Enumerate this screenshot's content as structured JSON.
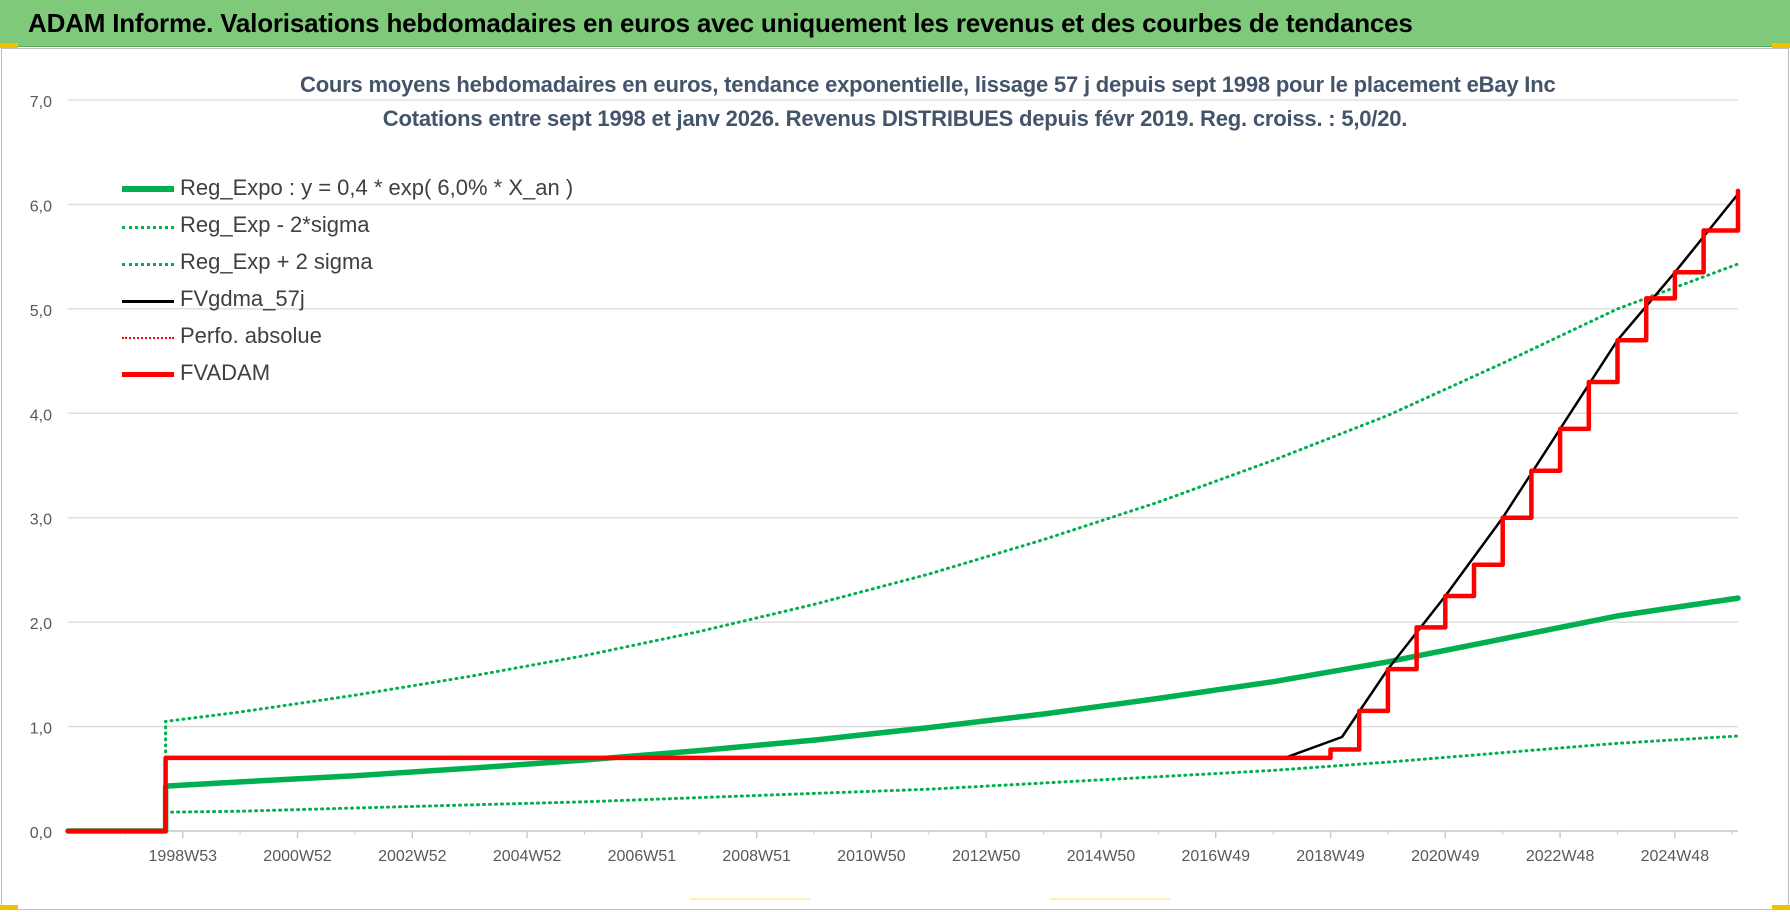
{
  "banner": {
    "title": "ADAM Informe. Valorisations hebdomadaires en euros avec uniquement les revenus et des courbes de tendances"
  },
  "colors": {
    "banner_bg": "#7ec97a",
    "green": "#00b050",
    "red": "#ff0000",
    "black": "#000000",
    "title_text": "#44546a",
    "grid": "#d9d9d9"
  },
  "chart_data": {
    "type": "line",
    "title": "Cours moyens hebdomadaires en euros, tendance exponentielle, lissage 57 j depuis sept 1998 pour le placement eBay Inc",
    "subtitle": "Cotations entre sept 1998 et janv 2026. Revenus DISTRIBUES depuis févr 2019. Reg. croiss. : 5,0/20.",
    "xlabel": "",
    "ylabel": "",
    "x_tick_labels": [
      "1998W53",
      "2000W52",
      "2002W52",
      "2004W52",
      "2006W51",
      "2008W51",
      "2010W50",
      "2012W50",
      "2014W50",
      "2016W49",
      "2018W49",
      "2020W49",
      "2022W48",
      "2024W48"
    ],
    "xlim": [
      1997.0,
      2026.1
    ],
    "y_tick_labels": [
      "0,0",
      "1,0",
      "2,0",
      "3,0",
      "4,0",
      "5,0",
      "6,0",
      "7,0"
    ],
    "ylim": [
      0,
      7
    ],
    "grid": true,
    "legend_position": "top-left",
    "series": [
      {
        "name": "Reg_Expo : y = 0,4 * exp( 6,0% *  X_an )",
        "color": "#00b050",
        "style": "solid",
        "width": "thick",
        "x": [
          1997.0,
          1998.7,
          1998.7,
          2000,
          2002,
          2004,
          2006,
          2008,
          2010,
          2012,
          2014,
          2016,
          2018,
          2020,
          2022,
          2024,
          2026.1
        ],
        "y": [
          0,
          0,
          0.43,
          0.47,
          0.53,
          0.6,
          0.68,
          0.77,
          0.87,
          0.99,
          1.12,
          1.27,
          1.43,
          1.62,
          1.84,
          2.06,
          2.23
        ]
      },
      {
        "name": "Reg_Exp - 2*sigma",
        "color": "#00b050",
        "style": "dotted",
        "width": "normal",
        "x": [
          1998.7,
          2000,
          2002,
          2004,
          2006,
          2008,
          2010,
          2012,
          2014,
          2016,
          2018,
          2020,
          2022,
          2024,
          2026.1
        ],
        "y": [
          0.18,
          0.19,
          0.22,
          0.25,
          0.28,
          0.32,
          0.36,
          0.4,
          0.46,
          0.52,
          0.58,
          0.66,
          0.75,
          0.84,
          0.91
        ]
      },
      {
        "name": "Reg_Exp + 2 sigma",
        "color": "#00b050",
        "style": "dotted",
        "width": "normal",
        "x": [
          1998.7,
          1998.7,
          2000,
          2002,
          2004,
          2006,
          2008,
          2010,
          2012,
          2014,
          2016,
          2018,
          2020,
          2022,
          2024,
          2026.1
        ],
        "y": [
          0.7,
          1.05,
          1.14,
          1.3,
          1.48,
          1.68,
          1.91,
          2.17,
          2.46,
          2.79,
          3.15,
          3.55,
          3.98,
          4.48,
          5.0,
          5.43
        ]
      },
      {
        "name": "FVgdma_57j",
        "color": "#000000",
        "style": "solid",
        "width": "normal",
        "x": [
          2018.2,
          2019.2,
          2020.0,
          2021.0,
          2022.0,
          2023.0,
          2024.0,
          2025.0,
          2026.1
        ],
        "y": [
          0.7,
          0.9,
          1.55,
          2.25,
          3.0,
          3.85,
          4.7,
          5.35,
          6.1
        ]
      },
      {
        "name": "Perfo. absolue",
        "color": "#ff0000",
        "style": "dotted",
        "width": "normal",
        "x": [],
        "y": []
      },
      {
        "name": "FVADAM",
        "color": "#ff0000",
        "style": "solid",
        "width": "thick",
        "shape": "step",
        "x": [
          1997.0,
          1998.7,
          1998.7,
          2018.2,
          2019.0,
          2019.5,
          2020.0,
          2020.5,
          2021.0,
          2021.5,
          2022.0,
          2022.5,
          2023.0,
          2023.5,
          2024.0,
          2024.5,
          2025.0,
          2025.5,
          2026.1
        ],
        "y": [
          0,
          0,
          0.7,
          0.7,
          0.78,
          1.15,
          1.55,
          1.95,
          2.25,
          2.55,
          3.0,
          3.45,
          3.85,
          4.3,
          4.7,
          5.1,
          5.35,
          5.75,
          6.13
        ]
      }
    ]
  }
}
